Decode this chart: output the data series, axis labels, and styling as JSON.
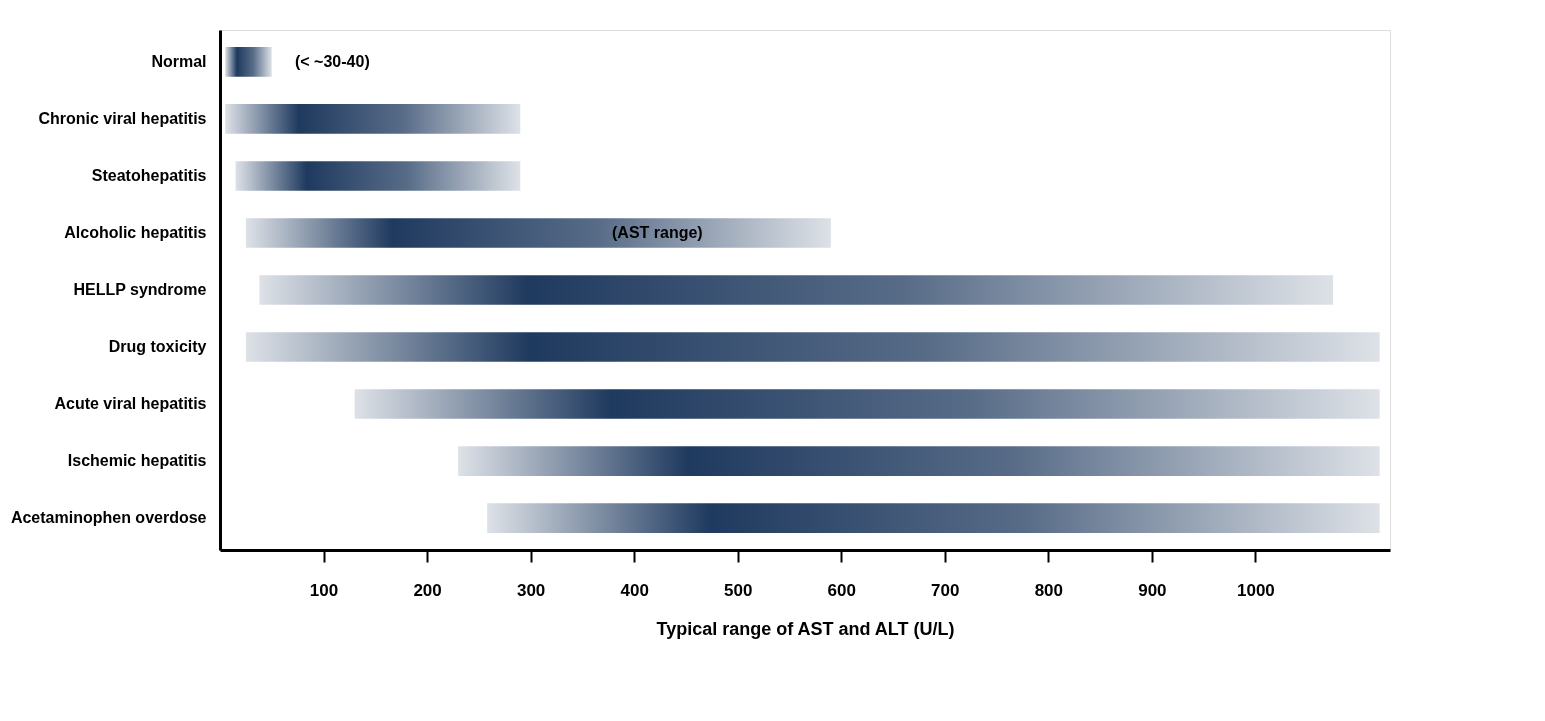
{
  "chart_data": {
    "type": "bar",
    "orientation": "horizontal",
    "categories": [
      "Normal",
      "Chronic viral hepatitis",
      "Steatohepatitis",
      "Alcoholic hepatitis",
      "HELLP syndrome",
      "Drug toxicity",
      "Acute viral hepatitis",
      "Ischemic hepatitis",
      "Acetaminophen overdose"
    ],
    "base": [
      5,
      5,
      15,
      25,
      38,
      25,
      130,
      230,
      258
    ],
    "values": [
      45,
      285,
      275,
      565,
      1037,
      1095,
      990,
      890,
      862
    ],
    "colors": [
      "#1f3a5f",
      "#1f3a5f",
      "#1f3a5f",
      "#1f3a5f",
      "#1f3a5f",
      "#1f3a5f",
      "#1f3a5f",
      "#1f3a5f",
      "#1f3a5f"
    ],
    "xlabel": "Typical range of AST and ALT (U/L)",
    "xlim": [
      0,
      1130
    ],
    "xticks": [
      100,
      200,
      300,
      400,
      500,
      600,
      700,
      800,
      900,
      1000
    ],
    "grid": false,
    "annotations": [
      "(< ~30-40)",
      "(AST range)"
    ]
  }
}
